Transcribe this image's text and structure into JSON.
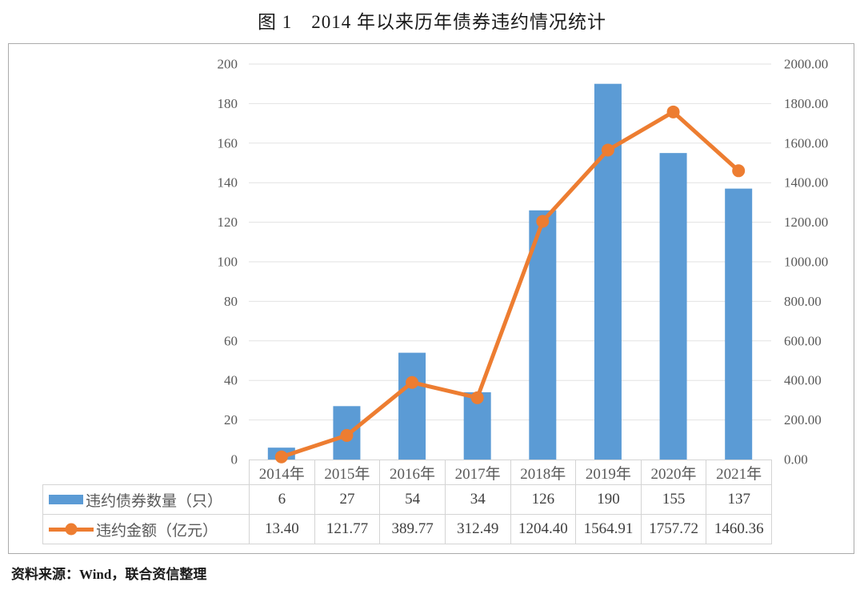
{
  "title": "图 1　2014 年以来历年债券违约情况统计",
  "source_note": "资料来源：Wind，联合资信整理",
  "colors": {
    "bar": "#5B9BD5",
    "line": "#ED7D31",
    "grid": "#e2e2e2",
    "axis_text": "#595959",
    "value_text": "#3f3f3f"
  },
  "chart_data": {
    "type": "combo_bar_line",
    "title": "图 1　2014 年以来历年债券违约情况统计",
    "categories": [
      "2014年",
      "2015年",
      "2016年",
      "2017年",
      "2018年",
      "2019年",
      "2020年",
      "2021年"
    ],
    "series": [
      {
        "name": "违约债券数量（只）",
        "type": "bar",
        "axis": "left",
        "values": [
          6,
          27,
          54,
          34,
          126,
          190,
          155,
          137
        ]
      },
      {
        "name": "违约金额（亿元）",
        "type": "line",
        "axis": "right",
        "values": [
          13.4,
          121.77,
          389.77,
          312.49,
          1204.4,
          1564.91,
          1757.72,
          1460.36
        ]
      }
    ],
    "left_axis": {
      "min": 0,
      "max": 200,
      "step": 20
    },
    "right_axis": {
      "min": 0,
      "max": 2000,
      "step": 200,
      "decimals": 2
    },
    "grid": true,
    "legend_position": "bottom-table"
  }
}
